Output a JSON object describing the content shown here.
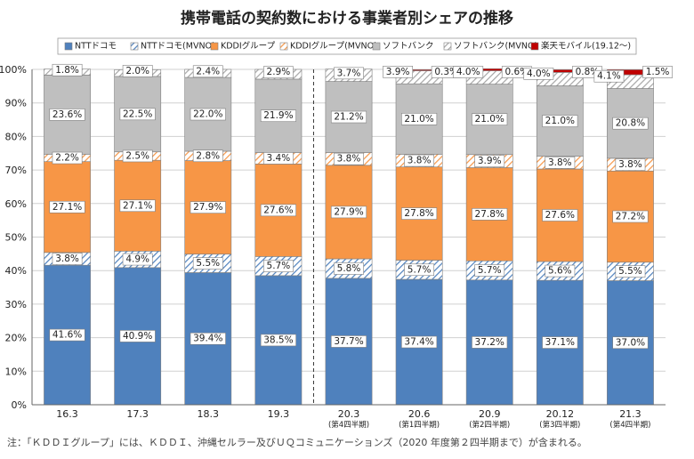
{
  "chart_data": {
    "type": "bar",
    "stacked": true,
    "title": "携帯電話の契約数における事業者別シェアの推移",
    "categories": [
      "16.3",
      "17.3",
      "18.3",
      "19.3",
      "20.3",
      "20.6",
      "20.9",
      "20.12",
      "21.3"
    ],
    "category_sublabels": [
      "",
      "",
      "",
      "",
      "(第4四半期)",
      "(第1四半期)",
      "(第2四半期)",
      "(第3四半期)",
      "(第4四半期)"
    ],
    "y_ticks": [
      "0%",
      "10%",
      "20%",
      "30%",
      "40%",
      "50%",
      "60%",
      "70%",
      "80%",
      "90%",
      "100%"
    ],
    "ylim": [
      0,
      100
    ],
    "grid": true,
    "legend_position": "top",
    "divider_after_index": 3,
    "series": [
      {
        "name": "NTTドコモ",
        "color": "#4f81bd",
        "pattern": "solid",
        "values": [
          41.6,
          40.9,
          39.4,
          38.5,
          37.7,
          37.4,
          37.2,
          37.1,
          37.0
        ],
        "labels": [
          "41.6%",
          "40.9%",
          "39.4%",
          "38.5%",
          "37.7%",
          "37.4%",
          "37.2%",
          "37.1%",
          "37.0%"
        ]
      },
      {
        "name": "NTTドコモ(MVNO)",
        "color": "#4f81bd",
        "pattern": "hatch",
        "values": [
          3.8,
          4.9,
          5.5,
          5.7,
          5.8,
          5.7,
          5.7,
          5.6,
          5.5
        ],
        "labels": [
          "3.8%",
          "4.9%",
          "5.5%",
          "5.7%",
          "5.8%",
          "5.7%",
          "5.7%",
          "5.6%",
          "5.5%"
        ]
      },
      {
        "name": "KDDIグループ",
        "color": "#f79646",
        "pattern": "solid",
        "values": [
          27.1,
          27.1,
          27.9,
          27.6,
          27.9,
          27.8,
          27.8,
          27.6,
          27.2
        ],
        "labels": [
          "27.1%",
          "27.1%",
          "27.9%",
          "27.6%",
          "27.9%",
          "27.8%",
          "27.8%",
          "27.6%",
          "27.2%"
        ]
      },
      {
        "name": "KDDIグループ(MVNO)",
        "color": "#f79646",
        "pattern": "hatch",
        "values": [
          2.2,
          2.5,
          2.8,
          3.4,
          3.8,
          3.8,
          3.9,
          3.8,
          3.8
        ],
        "labels": [
          "2.2%",
          "2.5%",
          "2.8%",
          "3.4%",
          "3.8%",
          "3.8%",
          "3.9%",
          "3.8%",
          "3.8%"
        ]
      },
      {
        "name": "ソフトバンク",
        "color": "#bfbfbf",
        "pattern": "solid",
        "values": [
          23.6,
          22.5,
          22.0,
          21.9,
          21.2,
          21.0,
          21.0,
          21.0,
          20.8
        ],
        "labels": [
          "23.6%",
          "22.5%",
          "22.0%",
          "21.9%",
          "21.2%",
          "21.0%",
          "21.0%",
          "21.0%",
          "20.8%"
        ]
      },
      {
        "name": "ソフトバンク(MVNO)",
        "color": "#bfbfbf",
        "pattern": "hatch",
        "values": [
          1.8,
          2.0,
          2.4,
          2.9,
          3.7,
          3.9,
          4.0,
          4.0,
          4.1
        ],
        "labels": [
          "1.8%",
          "2.0%",
          "2.4%",
          "2.9%",
          "3.7%",
          "3.9%",
          "4.0%",
          "4.0%",
          "4.1%"
        ]
      },
      {
        "name": "楽天モバイル(19.12～)",
        "color": "#c00000",
        "pattern": "solid",
        "values": [
          0,
          0,
          0,
          0,
          0,
          0.3,
          0.6,
          0.8,
          1.5
        ],
        "labels": [
          "",
          "",
          "",
          "",
          "",
          "0.3%",
          "0.6%",
          "0.8%",
          "1.5%"
        ]
      }
    ]
  },
  "footnote": "注：「ＫＤＤＩグループ」には、ＫＤＤＩ、沖縄セルラー及びＵＱコミュニケーションズ（2020 年度第２四半期まで）が含まれる。"
}
